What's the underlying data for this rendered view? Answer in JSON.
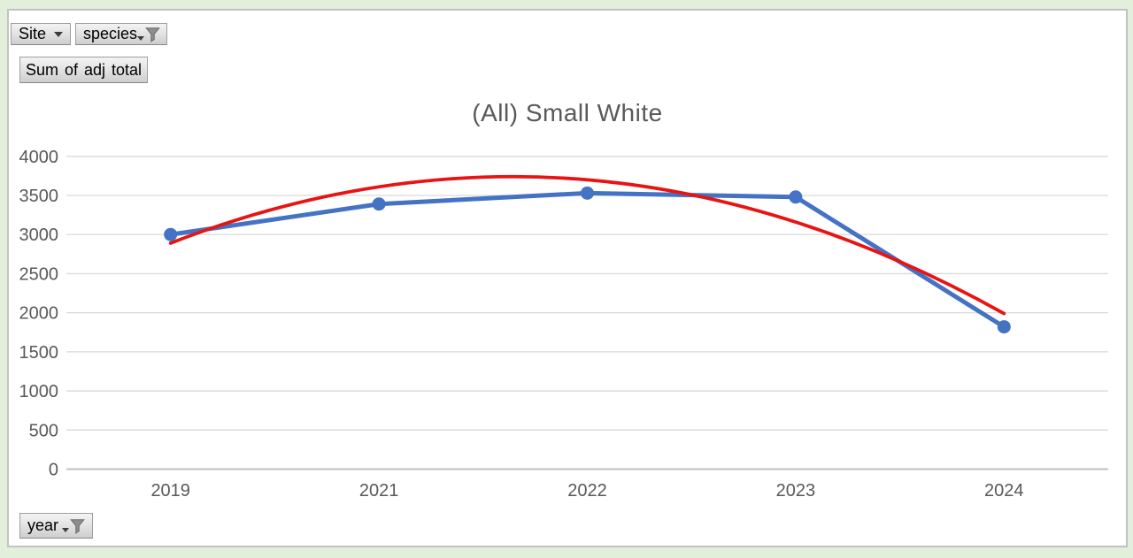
{
  "window": {
    "background_color": "#e2efda",
    "panel_border_color": "#c2c2c2"
  },
  "pivot_fields": {
    "site": {
      "label": "Site",
      "icon": "dropdown-arrow-icon",
      "filtered": false
    },
    "species": {
      "label": "species",
      "icon": "funnel-filter-icon",
      "filtered": true
    },
    "value": {
      "label": "Sum of adj total"
    },
    "year": {
      "label": "year",
      "icon": "funnel-filter-icon",
      "filtered": true
    }
  },
  "chart_data": {
    "type": "line",
    "title": "(All) Small White",
    "categories": [
      "2019",
      "2021",
      "2022",
      "2023",
      "2024"
    ],
    "series": [
      {
        "name": "Sum of adj total",
        "color": "#4472c4",
        "marker": "circle",
        "values": [
          3000,
          3390,
          3530,
          3480,
          1820
        ]
      }
    ],
    "trendline": {
      "type": "polynomial",
      "color": "#e81414",
      "values_at_categories": [
        2890,
        3610,
        3700,
        3150,
        1990
      ]
    },
    "xlabel": "",
    "ylabel": "",
    "ylim": [
      0,
      4000
    ],
    "ytick_step": 500,
    "grid": true,
    "legend": "none",
    "colors": {
      "gridline": "#d9d9d9",
      "axis_line": "#bfbfbf",
      "tick_label": "#595959",
      "title": "#595959",
      "plot_background": "#ffffff"
    }
  }
}
